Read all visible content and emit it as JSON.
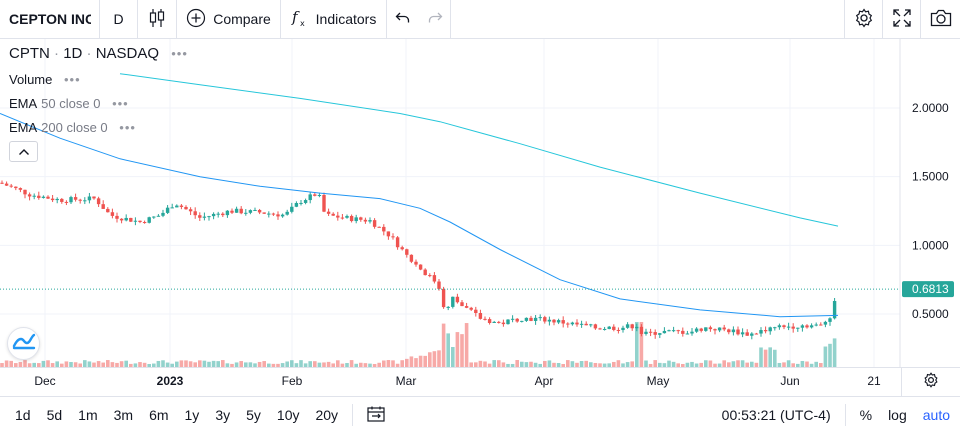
{
  "toolbar": {
    "symbol_name": "CEPTON INC",
    "interval": "D",
    "compare_label": "Compare",
    "indicators_label": "Indicators"
  },
  "legend": {
    "ticker": "CPTN",
    "interval": "1D",
    "exchange": "NASDAQ",
    "more": "•••"
  },
  "studies": [
    {
      "name": "Volume",
      "params": "",
      "more": "•••"
    },
    {
      "name": "EMA",
      "params": "50 close 0",
      "more": "•••"
    },
    {
      "name": "EMA",
      "params": "200 close 0",
      "more": "•••"
    }
  ],
  "price_axis": {
    "ticks": [
      "2.0000",
      "1.5000",
      "1.0000",
      "0.5000"
    ],
    "tick_values": [
      2.0,
      1.5,
      1.0,
      0.5
    ],
    "last_price": "0.6813",
    "last_value": 0.6813
  },
  "time_axis": {
    "labels": [
      "Dec",
      "2023",
      "Feb",
      "Mar",
      "Apr",
      "May",
      "Jun",
      "21"
    ]
  },
  "bottombar": {
    "ranges": [
      "1d",
      "5d",
      "1m",
      "3m",
      "6m",
      "1y",
      "3y",
      "5y",
      "10y",
      "20y"
    ],
    "clock": "00:53:21 (UTC-4)",
    "percent": "%",
    "log": "log",
    "auto": "auto"
  },
  "colors": {
    "up": "#26a69a",
    "down": "#ef5350",
    "ema50": "#2196f3",
    "ema200": "#26c6da",
    "accent": "#2962ff",
    "last_price_label": "#26a69a"
  },
  "icons": {
    "chart_type": "candles-icon",
    "compare": "plus-circle-icon",
    "indicators": "fx-icon",
    "undo": "undo-icon",
    "redo": "redo-icon",
    "settings": "gear-icon",
    "fullscreen": "fullscreen-icon",
    "snapshot": "camera-icon",
    "date_range": "calendar-range-icon",
    "time_axis_settings": "gear-icon"
  }
}
